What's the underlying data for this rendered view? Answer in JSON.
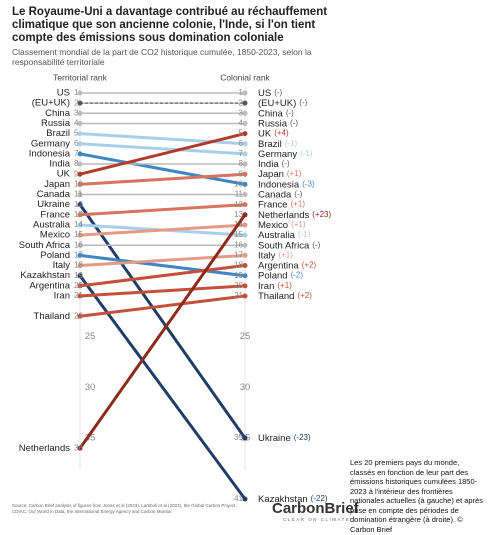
{
  "chart_data": {
    "type": "slope",
    "title": "Le Royaume-Uni a davantage contribué au réchauffement climatique que son ancienne colonie, l'Inde, si l'on tient compte des émissions sous domination coloniale",
    "subtitle": "Classement mondial de la part de CO2 historique cumulée, 1850-2023, selon la responsabilité territoriale",
    "left_label": "Territorial rank",
    "right_label": "Colonial rank",
    "ylim": [
      1,
      41
    ],
    "yticks": [
      25,
      30,
      35
    ],
    "countries": [
      {
        "name": "US",
        "left": 1,
        "right": 1,
        "change": "(-)",
        "color": "#bbbbbb"
      },
      {
        "name": "(EU+UK)",
        "left": 2,
        "right": 2,
        "change": "(-)",
        "color": "#555555",
        "dashed": true
      },
      {
        "name": "China",
        "left": 3,
        "right": 3,
        "change": "(-)",
        "color": "#bbbbbb"
      },
      {
        "name": "Russia",
        "left": 4,
        "right": 4,
        "change": "(-)",
        "color": "#bbbbbb"
      },
      {
        "name": "Brazil",
        "left": 5,
        "right": 6,
        "change": "(-1)",
        "color": "#a9cfe8"
      },
      {
        "name": "Germany",
        "left": 6,
        "right": 7,
        "change": "(-1)",
        "color": "#a9cfe8"
      },
      {
        "name": "Indonesia",
        "left": 7,
        "right": 10,
        "change": "(-3)",
        "color": "#3f86c4"
      },
      {
        "name": "India",
        "left": 8,
        "right": 8,
        "change": "(-)",
        "color": "#bbbbbb"
      },
      {
        "name": "UK",
        "left": 9,
        "right": 5,
        "change": "(+4)",
        "color": "#b23a28"
      },
      {
        "name": "Japan",
        "left": 10,
        "right": 9,
        "change": "(+1)",
        "color": "#d8735e"
      },
      {
        "name": "Canada",
        "left": 11,
        "right": 11,
        "change": "(-)",
        "color": "#bbbbbb"
      },
      {
        "name": "Ukraine",
        "left": 12,
        "right": 35,
        "change": "(-23)",
        "color": "#1f3d66"
      },
      {
        "name": "France",
        "left": 13,
        "right": 12,
        "change": "(+1)",
        "color": "#d8735e"
      },
      {
        "name": "Australia",
        "left": 14,
        "right": 15,
        "change": "(-1)",
        "color": "#a9cfe8"
      },
      {
        "name": "Mexico",
        "left": 15,
        "right": 14,
        "change": "(+1)",
        "color": "#e59a88"
      },
      {
        "name": "South Africa",
        "left": 16,
        "right": 16,
        "change": "(-)",
        "color": "#bbbbbb"
      },
      {
        "name": "Poland",
        "left": 17,
        "right": 19,
        "change": "(-2)",
        "color": "#3f86c4"
      },
      {
        "name": "Italy",
        "left": 18,
        "right": 17,
        "change": "(+1)",
        "color": "#e59a88"
      },
      {
        "name": "Kazakhstan",
        "left": 19,
        "right": 41,
        "change": "(-22)",
        "color": "#1f3d66"
      },
      {
        "name": "Argentina",
        "left": 20,
        "right": 18,
        "change": "(+2)",
        "color": "#c4503a"
      },
      {
        "name": "Iran",
        "left": 21,
        "right": 20,
        "change": "(+1)",
        "color": "#c4503a"
      },
      {
        "name": "Thailand",
        "left": 23,
        "right": 21,
        "change": "(+2)",
        "color": "#c4503a"
      },
      {
        "name": "Netherlands",
        "left": 36,
        "right": 13,
        "change": "(+23)",
        "color": "#8c2a1c"
      }
    ],
    "caption": "Les 20 premiers pays du monde, classés en fonction de leur part des émissions historiques cumulées 1850-2023 à l'intérieur des frontières nationales actuelles (à gauche) et après prise en compte des périodes de domination étrangère (à droite). © Carbon Brief",
    "source": "Source: Carbon Brief analysis of figures from Jones et al (2023), Lamboll et al (2023), the Global Carbon Project, CDIAC, Our World in Data, the International Energy Agency and Carbon Monitor.",
    "logo": "CarbonBrief",
    "tagline": "CLEAR ON CLIMATE"
  }
}
